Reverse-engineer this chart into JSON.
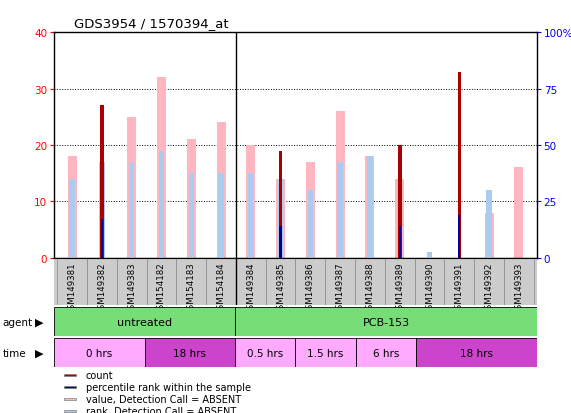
{
  "title": "GDS3954 / 1570394_at",
  "samples": [
    "GSM149381",
    "GSM149382",
    "GSM149383",
    "GSM154182",
    "GSM154183",
    "GSM154184",
    "GSM149384",
    "GSM149385",
    "GSM149386",
    "GSM149387",
    "GSM149388",
    "GSM149389",
    "GSM149390",
    "GSM149391",
    "GSM149392",
    "GSM149393"
  ],
  "count_values": [
    0,
    27,
    0,
    0,
    0,
    0,
    0,
    19,
    0,
    0,
    0,
    20,
    0,
    33,
    0,
    0
  ],
  "percentile_values": [
    0,
    17,
    0,
    0,
    0,
    0,
    0,
    14,
    0,
    0,
    0,
    14,
    0,
    19,
    0,
    0
  ],
  "value_absent": [
    18,
    0,
    25,
    32,
    21,
    24,
    20,
    14,
    17,
    26,
    18,
    14,
    0,
    0,
    8,
    16
  ],
  "rank_absent": [
    14,
    17,
    17,
    19,
    15,
    15,
    15,
    14,
    12,
    17,
    18,
    14,
    1,
    0,
    12,
    0
  ],
  "agent_groups": [
    {
      "label": "untreated",
      "start": 0,
      "end": 6,
      "color": "#77DD77"
    },
    {
      "label": "PCB-153",
      "start": 6,
      "end": 16,
      "color": "#77DD77"
    }
  ],
  "time_groups": [
    {
      "label": "0 hrs",
      "start": 0,
      "end": 3,
      "color": "#FFAAFF"
    },
    {
      "label": "18 hrs",
      "start": 3,
      "end": 6,
      "color": "#CC44CC"
    },
    {
      "label": "0.5 hrs",
      "start": 6,
      "end": 8,
      "color": "#FFAAFF"
    },
    {
      "label": "1.5 hrs",
      "start": 8,
      "end": 10,
      "color": "#FFAAFF"
    },
    {
      "label": "6 hrs",
      "start": 10,
      "end": 12,
      "color": "#FFAAFF"
    },
    {
      "label": "18 hrs",
      "start": 12,
      "end": 16,
      "color": "#CC44CC"
    }
  ],
  "count_color": "#AA0000",
  "percentile_color": "#000099",
  "value_absent_color": "#FFB6C1",
  "rank_absent_color": "#AACCEE",
  "ylim_left": [
    0,
    40
  ],
  "ylim_right": [
    0,
    100
  ],
  "yticks_left": [
    0,
    10,
    20,
    30,
    40
  ],
  "yticks_right": [
    0,
    25,
    50,
    75,
    100
  ],
  "background_color": "#FFFFFF",
  "plot_bg": "#FFFFFF",
  "agent_divider": 6,
  "legend_items": [
    {
      "label": "count",
      "color": "#AA0000"
    },
    {
      "label": "percentile rank within the sample",
      "color": "#000099"
    },
    {
      "label": "value, Detection Call = ABSENT",
      "color": "#FFB6C1"
    },
    {
      "label": "rank, Detection Call = ABSENT",
      "color": "#AACCEE"
    }
  ]
}
